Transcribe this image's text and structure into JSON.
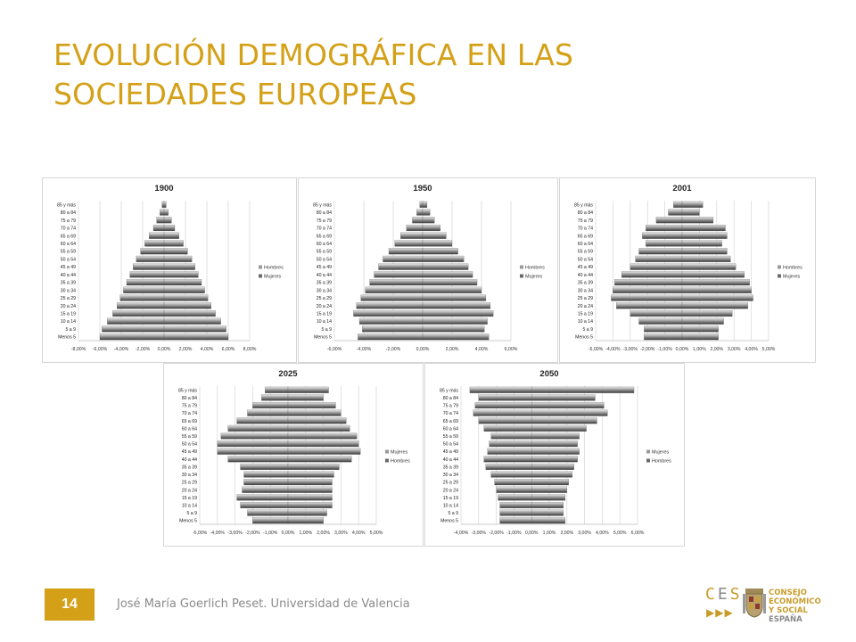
{
  "slide": {
    "title_line1": "EVOLUCIÓN DEMOGRÁFICA EN LAS",
    "title_line2": "SOCIEDADES EUROPEAS",
    "page_number": "14",
    "footer": "José María Goerlich Peset. Universidad de Valencia",
    "logo": {
      "abbr": [
        "C",
        "E",
        "S"
      ],
      "arrows": "▶▶▶",
      "line1": "CONSEJO",
      "line2": "ECONÓMICO",
      "line3": "Y SOCIAL",
      "line4": "ESPAÑA",
      "accent": "#c89c2a"
    },
    "colors": {
      "accent": "#d4a017",
      "bar": "#9a9a9a"
    }
  },
  "chart_data": [
    {
      "type": "bar",
      "orientation": "horizontal",
      "title": "1900",
      "categories": [
        "85 y más",
        "80 a 84",
        "75 a 79",
        "70 a 74",
        "65 a 69",
        "60 a 64",
        "55 a 59",
        "50 a 54",
        "45 a 49",
        "40 a 44",
        "35 a 39",
        "30 a 34",
        "25 a 29",
        "20 a 24",
        "15 a 19",
        "10 a 14",
        "5 a 9",
        "Menos 5"
      ],
      "series": [
        {
          "name": "Hombres",
          "values": [
            -0.2,
            -0.4,
            -0.7,
            -1.0,
            -1.4,
            -1.8,
            -2.2,
            -2.6,
            -2.9,
            -3.2,
            -3.5,
            -3.8,
            -4.1,
            -4.4,
            -4.8,
            -5.3,
            -5.8,
            -6.0
          ]
        },
        {
          "name": "Mujeres",
          "values": [
            0.2,
            0.4,
            0.7,
            1.0,
            1.4,
            1.8,
            2.2,
            2.6,
            2.9,
            3.2,
            3.5,
            3.8,
            4.1,
            4.4,
            4.8,
            5.3,
            5.8,
            6.0
          ]
        }
      ],
      "xticks": [
        "-8,00%",
        "-6,00%",
        "-4,00%",
        "-2,00%",
        "0,00%",
        "2,00%",
        "4,00%",
        "6,00%",
        "8,00%"
      ],
      "xlim": [
        -8,
        8
      ],
      "legend": [
        "Hombres",
        "Mujeres"
      ]
    },
    {
      "type": "bar",
      "orientation": "horizontal",
      "title": "1950",
      "categories": [
        "85 y más",
        "80 a 84",
        "75 a 79",
        "70 a 74",
        "65 a 69",
        "60 a 64",
        "55 a 59",
        "50 a 54",
        "45 a 49",
        "40 a 44",
        "35 a 39",
        "30 a 34",
        "25 a 29",
        "20 a 24",
        "15 a 19",
        "10 a 14",
        "5 a 9",
        "Menos 5"
      ],
      "series": [
        {
          "name": "Hombres",
          "values": [
            -0.2,
            -0.4,
            -0.7,
            -1.1,
            -1.5,
            -1.9,
            -2.3,
            -2.7,
            -3.0,
            -3.3,
            -3.6,
            -3.9,
            -4.2,
            -4.5,
            -4.7,
            -4.3,
            -4.1,
            -4.4
          ]
        },
        {
          "name": "Mujeres",
          "values": [
            0.3,
            0.5,
            0.8,
            1.2,
            1.6,
            2.0,
            2.4,
            2.8,
            3.1,
            3.4,
            3.7,
            4.0,
            4.3,
            4.6,
            4.8,
            4.4,
            4.2,
            4.5
          ]
        }
      ],
      "xticks": [
        "-6,00%",
        "-4,00%",
        "-2,00%",
        "0,00%",
        "2,00%",
        "4,00%",
        "6,00%"
      ],
      "xlim": [
        -6,
        6
      ],
      "legend": [
        "Hombres",
        "Mujeres"
      ]
    },
    {
      "type": "bar",
      "orientation": "horizontal",
      "title": "2001",
      "categories": [
        "85 y más",
        "80 a 84",
        "75 a 79",
        "70 a 74",
        "65 a 69",
        "60 a 64",
        "55 a 59",
        "50 a 54",
        "45 a 49",
        "40 a 44",
        "35 a 39",
        "30 a 34",
        "25 a 29",
        "20 a 24",
        "15 a 19",
        "10 a 14",
        "5 a 9",
        "Menos 5"
      ],
      "series": [
        {
          "name": "Hombres",
          "values": [
            -0.5,
            -0.8,
            -1.5,
            -2.1,
            -2.3,
            -2.1,
            -2.5,
            -2.7,
            -3.0,
            -3.5,
            -3.9,
            -4.0,
            -4.1,
            -3.8,
            -3.0,
            -2.5,
            -2.2,
            -2.2
          ]
        },
        {
          "name": "Mujeres",
          "values": [
            1.2,
            1.0,
            1.8,
            2.5,
            2.6,
            2.3,
            2.6,
            2.8,
            3.1,
            3.6,
            3.9,
            4.0,
            4.1,
            3.8,
            2.9,
            2.4,
            2.1,
            2.1
          ]
        }
      ],
      "xticks": [
        "-5,00%",
        "-4,00%",
        "-3,00%",
        "-2,00%",
        "-1,00%",
        "0,00%",
        "1,00%",
        "2,00%",
        "3,00%",
        "4,00%",
        "5,00%"
      ],
      "xlim": [
        -5,
        5
      ],
      "legend": [
        "Hombres",
        "Mujeres"
      ]
    },
    {
      "type": "bar",
      "orientation": "horizontal",
      "title": "2025",
      "categories": [
        "85 y más",
        "80 a 84",
        "75 a 79",
        "70 a 74",
        "65 a 69",
        "60 a 64",
        "55 a 59",
        "50 a 54",
        "45 a 49",
        "40 a 44",
        "35 a 39",
        "30 a 34",
        "25 a 29",
        "20 a 24",
        "15 a 19",
        "10 a 14",
        "5 a 9",
        "Menos 5"
      ],
      "series": [
        {
          "name": "Mujeres",
          "values": [
            -1.3,
            -1.5,
            -2.0,
            -2.3,
            -2.9,
            -3.4,
            -3.8,
            -4.0,
            -4.0,
            -3.4,
            -2.7,
            -2.5,
            -2.5,
            -2.6,
            -2.9,
            -2.7,
            -2.3,
            -2.0
          ]
        },
        {
          "name": "Hombres",
          "values": [
            2.3,
            2.0,
            2.7,
            3.0,
            3.3,
            3.5,
            3.9,
            4.0,
            4.1,
            3.6,
            2.9,
            2.6,
            2.5,
            2.5,
            2.5,
            2.5,
            2.2,
            2.0
          ]
        }
      ],
      "xticks": [
        "-5,00%",
        "-4,00%",
        "-3,00%",
        "-2,00%",
        "-1,00%",
        "0,00%",
        "1,00%",
        "2,00%",
        "3,00%",
        "4,00%",
        "5,00%"
      ],
      "xlim": [
        -5,
        5
      ],
      "legend": [
        "Mujeres",
        "Hombres"
      ]
    },
    {
      "type": "bar",
      "orientation": "horizontal",
      "title": "2050",
      "categories": [
        "85 y más",
        "80 a 84",
        "75 a 79",
        "70 a 74",
        "65 a 69",
        "60 a 64",
        "55 a 59",
        "50 a 54",
        "45 a 49",
        "40 a 44",
        "35 a 39",
        "30 a 34",
        "25 a 29",
        "20 a 24",
        "15 a 19",
        "10 a 14",
        "5 a 9",
        "Menos 5"
      ],
      "series": [
        {
          "name": "Mujeres",
          "values": [
            -3.5,
            -3.0,
            -3.2,
            -3.3,
            -3.0,
            -2.7,
            -2.3,
            -2.4,
            -2.5,
            -2.7,
            -2.6,
            -2.3,
            -2.1,
            -2.0,
            -1.9,
            -1.8,
            -1.8,
            -1.8
          ]
        },
        {
          "name": "Hombres",
          "values": [
            5.8,
            3.6,
            4.1,
            4.3,
            3.7,
            3.1,
            2.7,
            2.6,
            2.7,
            2.6,
            2.4,
            2.3,
            2.1,
            2.0,
            1.9,
            1.8,
            1.8,
            1.9
          ]
        }
      ],
      "xticks": [
        "-4,00%",
        "-3,00%",
        "-2,00%",
        "-1,00%",
        "0,00%",
        "1,00%",
        "2,00%",
        "3,00%",
        "4,00%",
        "5,00%",
        "6,00%"
      ],
      "xlim": [
        -4,
        6
      ],
      "legend": [
        "Mujeres",
        "Hombres"
      ]
    }
  ]
}
